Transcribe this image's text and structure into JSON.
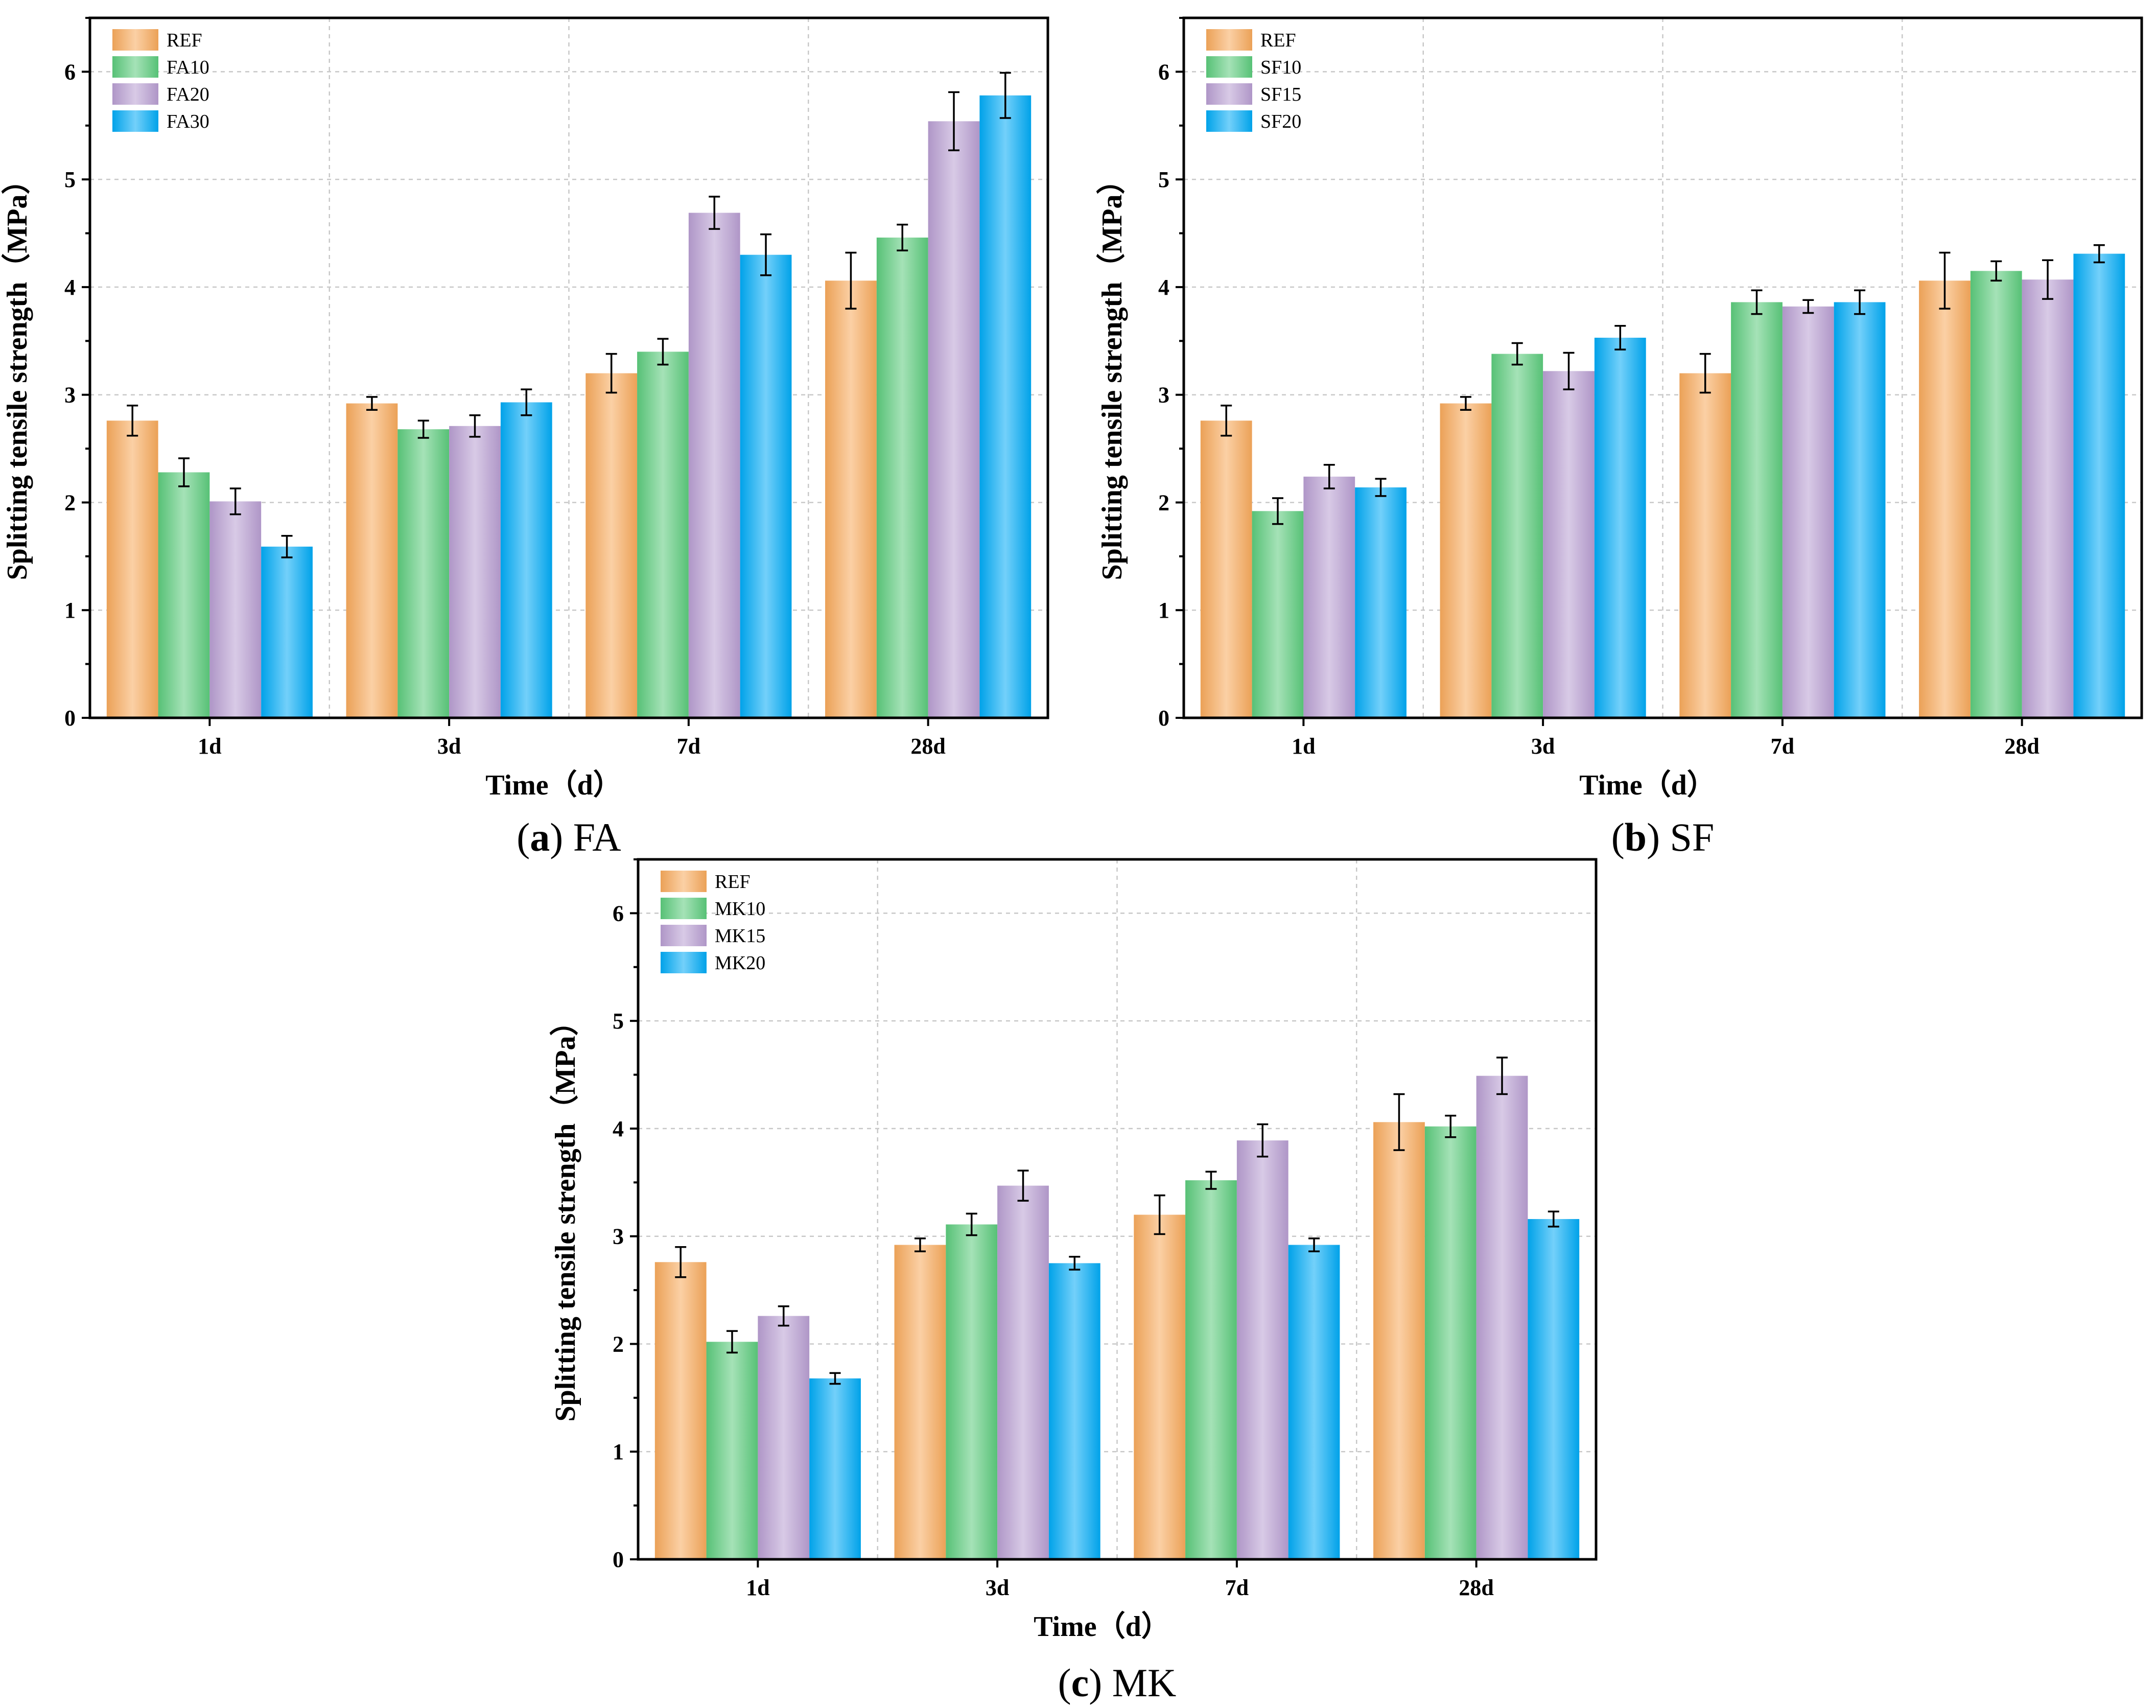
{
  "series_colors": {
    "REF": "#f7a95c",
    "MOD1": "#5ccb7c",
    "MOD2": "#b89ed1",
    "MOD3": "#00aaf5"
  },
  "chart_data": [
    {
      "id": "a",
      "type": "bar",
      "caption_letter": "a",
      "caption_text": " FA",
      "paren_open": "(",
      "paren_close": ")",
      "xlabel": "Time（d）",
      "ylabel": "Splitting tensile strength（MPa）",
      "ylim": [
        0,
        6.5
      ],
      "yticks": [
        "0",
        "1",
        "2",
        "3",
        "4",
        "5",
        "6"
      ],
      "categories": [
        "1d",
        "3d",
        "7d",
        "28d"
      ],
      "legend_position": "top-left",
      "series": [
        {
          "name": "REF",
          "values": [
            2.76,
            2.92,
            3.2,
            4.06
          ],
          "errors": [
            0.14,
            0.06,
            0.18,
            0.26
          ]
        },
        {
          "name": "FA10",
          "values": [
            2.28,
            2.68,
            3.4,
            4.46
          ],
          "errors": [
            0.13,
            0.08,
            0.12,
            0.12
          ]
        },
        {
          "name": "FA20",
          "values": [
            2.01,
            2.71,
            4.69,
            5.54
          ],
          "errors": [
            0.12,
            0.1,
            0.15,
            0.27
          ]
        },
        {
          "name": "FA30",
          "values": [
            1.59,
            2.93,
            4.3,
            5.78
          ],
          "errors": [
            0.1,
            0.12,
            0.19,
            0.21
          ]
        }
      ]
    },
    {
      "id": "b",
      "type": "bar",
      "caption_letter": "b",
      "caption_text": " SF",
      "paren_open": "(",
      "paren_close": ")",
      "xlabel": "Time（d）",
      "ylabel": "Splitting tensile strength（MPa）",
      "ylim": [
        0,
        6.5
      ],
      "yticks": [
        "0",
        "1",
        "2",
        "3",
        "4",
        "5",
        "6"
      ],
      "categories": [
        "1d",
        "3d",
        "7d",
        "28d"
      ],
      "legend_position": "top-left",
      "series": [
        {
          "name": "REF",
          "values": [
            2.76,
            2.92,
            3.2,
            4.06
          ],
          "errors": [
            0.14,
            0.06,
            0.18,
            0.26
          ]
        },
        {
          "name": "SF10",
          "values": [
            1.92,
            3.38,
            3.86,
            4.15
          ],
          "errors": [
            0.12,
            0.1,
            0.11,
            0.09
          ]
        },
        {
          "name": "SF15",
          "values": [
            2.24,
            3.22,
            3.82,
            4.07
          ],
          "errors": [
            0.11,
            0.17,
            0.06,
            0.18
          ]
        },
        {
          "name": "SF20",
          "values": [
            2.14,
            3.53,
            3.86,
            4.31
          ],
          "errors": [
            0.08,
            0.11,
            0.11,
            0.08
          ]
        }
      ]
    },
    {
      "id": "c",
      "type": "bar",
      "caption_letter": "c",
      "caption_text": " MK",
      "paren_open": "(",
      "paren_close": ")",
      "xlabel": "Time（d）",
      "ylabel": "Splitting tensile strength（MPa）",
      "ylim": [
        0,
        6.5
      ],
      "yticks": [
        "0",
        "1",
        "2",
        "3",
        "4",
        "5",
        "6"
      ],
      "categories": [
        "1d",
        "3d",
        "7d",
        "28d"
      ],
      "legend_position": "top-left",
      "series": [
        {
          "name": "REF",
          "values": [
            2.76,
            2.92,
            3.2,
            4.06
          ],
          "errors": [
            0.14,
            0.06,
            0.18,
            0.26
          ]
        },
        {
          "name": "MK10",
          "values": [
            2.02,
            3.11,
            3.52,
            4.02
          ],
          "errors": [
            0.1,
            0.1,
            0.08,
            0.1
          ]
        },
        {
          "name": "MK15",
          "values": [
            2.26,
            3.47,
            3.89,
            4.49
          ],
          "errors": [
            0.09,
            0.14,
            0.15,
            0.17
          ]
        },
        {
          "name": "MK20",
          "values": [
            1.68,
            2.75,
            2.92,
            3.16
          ],
          "errors": [
            0.05,
            0.06,
            0.06,
            0.07
          ]
        }
      ]
    }
  ]
}
